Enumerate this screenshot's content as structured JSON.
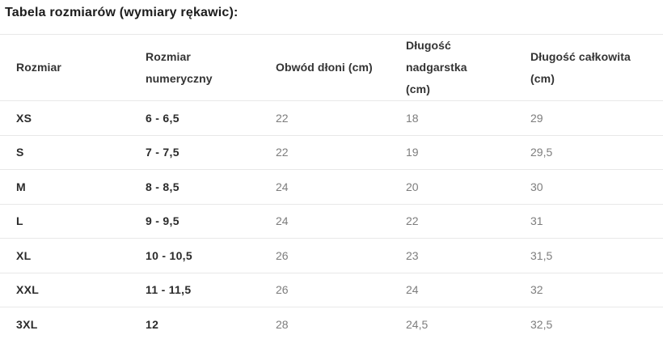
{
  "title": "Tabela rozmiarów (wymiary rękawic):",
  "table": {
    "columns": [
      "Rozmiar",
      "Rozmiar\nnumeryczny",
      "Obwód dłoni (cm)",
      "Długość nadgarstka\n(cm)",
      "Długość całkowita\n(cm)"
    ],
    "rows": [
      [
        "XS",
        "6 - 6,5",
        "22",
        "18",
        "29"
      ],
      [
        "S",
        "7 - 7,5",
        "22",
        "19",
        "29,5"
      ],
      [
        "M",
        "8 - 8,5",
        "24",
        "20",
        "30"
      ],
      [
        "L",
        "9 - 9,5",
        "24",
        "22",
        "31"
      ],
      [
        "XL",
        "10 - 10,5",
        "26",
        "23",
        "31,5"
      ],
      [
        "XXL",
        "11 - 11,5",
        "26",
        "24",
        "32"
      ],
      [
        "3XL",
        "12",
        "28",
        "24,5",
        "32,5"
      ]
    ]
  },
  "colors": {
    "background": "#ffffff",
    "title_text": "#1c1c1c",
    "header_text": "#333333",
    "size_text": "#2b2b2b",
    "value_text": "#7d7d7d",
    "divider": "#e8e8e8"
  }
}
